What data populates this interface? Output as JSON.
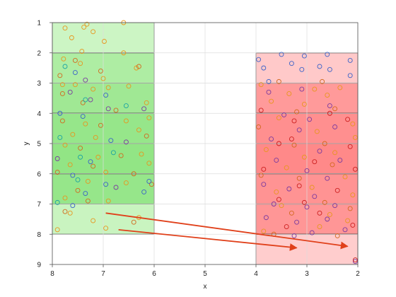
{
  "chart_data": {
    "type": "scatter",
    "title": "",
    "xlabel": "x",
    "ylabel": "y",
    "xlim": [
      8,
      2
    ],
    "ylim": [
      9,
      1
    ],
    "x_reversed": true,
    "y_reversed": true,
    "grid": true,
    "xticks": [
      "8",
      "7",
      "6",
      "5",
      "4",
      "3",
      "2"
    ],
    "yticks": [
      "1",
      "2",
      "3",
      "4",
      "5",
      "6",
      "7",
      "8",
      "9"
    ],
    "regions": [
      {
        "name": "left-block",
        "x_range": [
          8,
          6
        ],
        "bands": [
          {
            "y_range": [
              1,
              2
            ],
            "color": "#ccf5c4"
          },
          {
            "y_range": [
              2,
              3
            ],
            "color": "#aeeda3"
          },
          {
            "y_range": [
              3,
              4
            ],
            "color": "#a0e894"
          },
          {
            "y_range": [
              4,
              5
            ],
            "color": "#96e68a"
          },
          {
            "y_range": [
              5,
              6
            ],
            "color": "#92e585"
          },
          {
            "y_range": [
              6,
              7
            ],
            "color": "#96e68a"
          },
          {
            "y_range": [
              7,
              8
            ],
            "color": "#c9f4c0"
          }
        ]
      },
      {
        "name": "right-block",
        "x_range": [
          4,
          2
        ],
        "bands": [
          {
            "y_range": [
              2,
              3
            ],
            "color": "#ffc9c9"
          },
          {
            "y_range": [
              3,
              4
            ],
            "color": "#ff9a9a"
          },
          {
            "y_range": [
              4,
              5
            ],
            "color": "#ff8f8f"
          },
          {
            "y_range": [
              5,
              6
            ],
            "color": "#ff8989"
          },
          {
            "y_range": [
              6,
              7
            ],
            "color": "#ff9393"
          },
          {
            "y_range": [
              7,
              8
            ],
            "color": "#ff9696"
          },
          {
            "y_range": [
              8,
              9
            ],
            "color": "#ffcdcd"
          }
        ]
      }
    ],
    "point_colors": {
      "blue": "#3a62c9",
      "purple": "#7a3aa0",
      "orange": "#e8961e",
      "dark_orange": "#d2691e",
      "red": "#cc1f1f",
      "teal": "#1aa3a3"
    },
    "series": [
      {
        "color_key": "orange",
        "points": [
          [
            7.75,
            1.18
          ],
          [
            7.38,
            1.15
          ],
          [
            7.32,
            1.05
          ],
          [
            6.6,
            1.0
          ],
          [
            7.62,
            1.5
          ],
          [
            7.2,
            1.3
          ],
          [
            6.98,
            1.62
          ],
          [
            7.42,
            1.95
          ],
          [
            6.6,
            2.0
          ],
          [
            7.78,
            2.2
          ],
          [
            7.45,
            2.35
          ],
          [
            6.35,
            2.5
          ],
          [
            7.0,
            2.85
          ],
          [
            6.9,
            3.15
          ],
          [
            7.55,
            3.05
          ],
          [
            7.2,
            3.2
          ],
          [
            6.5,
            3.1
          ],
          [
            6.15,
            3.65
          ],
          [
            7.8,
            3.05
          ],
          [
            7.35,
            4.35
          ],
          [
            6.55,
            4.25
          ],
          [
            6.1,
            4.15
          ],
          [
            7.6,
            4.7
          ],
          [
            7.15,
            4.8
          ],
          [
            6.3,
            4.55
          ],
          [
            7.75,
            5.05
          ],
          [
            7.1,
            5.45
          ],
          [
            6.25,
            5.35
          ],
          [
            7.65,
            5.7
          ],
          [
            6.95,
            5.95
          ],
          [
            6.1,
            5.65
          ],
          [
            7.3,
            6.25
          ],
          [
            6.55,
            6.3
          ],
          [
            7.75,
            6.8
          ],
          [
            6.9,
            6.9
          ],
          [
            7.65,
            7.3
          ],
          [
            7.2,
            7.55
          ],
          [
            6.95,
            7.8
          ],
          [
            6.3,
            7.45
          ],
          [
            7.9,
            7.85
          ],
          [
            3.9,
            3.05
          ],
          [
            3.35,
            3.35
          ],
          [
            2.85,
            3.2
          ],
          [
            2.35,
            3.15
          ],
          [
            3.7,
            3.6
          ],
          [
            3.05,
            3.7
          ],
          [
            2.6,
            3.4
          ],
          [
            2.05,
            4.8
          ],
          [
            3.55,
            4.15
          ],
          [
            2.8,
            4.6
          ],
          [
            2.1,
            4.35
          ],
          [
            3.8,
            5.2
          ],
          [
            3.05,
            5.45
          ],
          [
            2.45,
            5.3
          ],
          [
            3.4,
            5.8
          ],
          [
            2.25,
            6.1
          ],
          [
            3.6,
            6.6
          ],
          [
            2.9,
            6.45
          ],
          [
            2.1,
            6.7
          ],
          [
            3.5,
            7.05
          ],
          [
            2.55,
            7.35
          ],
          [
            3.85,
            7.9
          ],
          [
            2.75,
            7.75
          ],
          [
            2.2,
            7.55
          ]
        ]
      },
      {
        "color_key": "dark_orange",
        "points": [
          [
            7.85,
            2.75
          ],
          [
            7.55,
            2.25
          ],
          [
            6.3,
            2.45
          ],
          [
            7.05,
            2.6
          ],
          [
            7.8,
            3.35
          ],
          [
            7.4,
            3.65
          ],
          [
            6.75,
            3.9
          ],
          [
            7.8,
            4.25
          ],
          [
            7.05,
            4.4
          ],
          [
            6.15,
            4.75
          ],
          [
            7.45,
            5.15
          ],
          [
            6.65,
            5.4
          ],
          [
            7.9,
            5.95
          ],
          [
            7.2,
            5.75
          ],
          [
            6.4,
            6.0
          ],
          [
            7.5,
            6.55
          ],
          [
            6.05,
            6.35
          ],
          [
            7.3,
            6.9
          ],
          [
            6.4,
            7.6
          ],
          [
            7.75,
            7.25
          ],
          [
            3.55,
            2.95
          ],
          [
            2.7,
            2.95
          ],
          [
            3.2,
            3.95
          ],
          [
            2.45,
            3.85
          ],
          [
            3.95,
            4.45
          ],
          [
            2.65,
            5.0
          ],
          [
            3.25,
            5.05
          ],
          [
            2.5,
            5.7
          ],
          [
            3.9,
            6.05
          ],
          [
            3.15,
            6.15
          ],
          [
            2.65,
            6.95
          ],
          [
            3.3,
            7.3
          ],
          [
            2.15,
            7.15
          ],
          [
            3.65,
            8.0
          ],
          [
            2.4,
            8.05
          ]
        ]
      },
      {
        "color_key": "blue",
        "points": [
          [
            3.95,
            2.22
          ],
          [
            3.85,
            2.5
          ],
          [
            3.5,
            2.05
          ],
          [
            3.05,
            2.1
          ],
          [
            2.6,
            2.05
          ],
          [
            2.75,
            2.45
          ],
          [
            3.3,
            2.35
          ],
          [
            2.15,
            2.25
          ],
          [
            2.55,
            2.55
          ],
          [
            3.1,
            2.55
          ],
          [
            3.75,
            2.95
          ],
          [
            2.15,
            2.75
          ],
          [
            7.55,
            2.65
          ],
          [
            6.95,
            3.4
          ],
          [
            7.4,
            4.1
          ],
          [
            7.85,
            4.0
          ],
          [
            6.85,
            4.9
          ],
          [
            7.25,
            5.6
          ],
          [
            7.6,
            6.05
          ],
          [
            6.1,
            6.25
          ],
          [
            6.95,
            6.35
          ],
          [
            7.35,
            6.65
          ],
          [
            6.2,
            6.6
          ],
          [
            7.6,
            7.05
          ]
        ]
      },
      {
        "color_key": "purple",
        "points": [
          [
            7.35,
            2.9
          ],
          [
            7.65,
            3.3
          ],
          [
            7.25,
            3.55
          ],
          [
            6.9,
            3.85
          ],
          [
            6.2,
            3.85
          ],
          [
            6.55,
            4.95
          ],
          [
            7.9,
            5.5
          ],
          [
            6.75,
            6.45
          ],
          [
            3.75,
            3.3
          ],
          [
            3.1,
            3.2
          ],
          [
            2.55,
            3.75
          ],
          [
            3.45,
            4.05
          ],
          [
            2.95,
            4.2
          ],
          [
            2.45,
            4.45
          ],
          [
            3.7,
            4.85
          ],
          [
            3.15,
            4.55
          ],
          [
            2.75,
            5.25
          ],
          [
            3.6,
            5.55
          ],
          [
            2.35,
            5.55
          ],
          [
            3.0,
            5.9
          ],
          [
            2.6,
            6.15
          ],
          [
            3.85,
            6.35
          ],
          [
            3.35,
            6.5
          ],
          [
            2.85,
            6.75
          ],
          [
            3.65,
            7.0
          ],
          [
            3.0,
            7.1
          ],
          [
            2.45,
            7.05
          ],
          [
            3.8,
            7.45
          ],
          [
            3.2,
            7.6
          ],
          [
            2.6,
            7.5
          ],
          [
            2.25,
            7.85
          ],
          [
            3.25,
            8.05
          ],
          [
            2.9,
            7.95
          ],
          [
            2.05,
            8.9
          ]
        ]
      },
      {
        "color_key": "red",
        "points": [
          [
            3.9,
            3.9
          ],
          [
            3.25,
            4.25
          ],
          [
            2.55,
            4.0
          ],
          [
            2.2,
            4.2
          ],
          [
            3.3,
            4.85
          ],
          [
            2.15,
            5.1
          ],
          [
            3.55,
            5.0
          ],
          [
            2.85,
            5.6
          ],
          [
            3.85,
            5.85
          ],
          [
            2.05,
            5.85
          ],
          [
            3.15,
            6.4
          ],
          [
            2.4,
            6.55
          ],
          [
            3.55,
            6.85
          ],
          [
            3.05,
            6.95
          ],
          [
            2.75,
            7.3
          ],
          [
            3.4,
            7.75
          ],
          [
            2.05,
            8.85
          ],
          [
            2.1,
            7.7
          ]
        ]
      },
      {
        "color_key": "teal",
        "points": [
          [
            7.75,
            2.45
          ],
          [
            7.35,
            3.55
          ],
          [
            6.55,
            3.75
          ],
          [
            7.85,
            4.8
          ],
          [
            7.45,
            5.45
          ],
          [
            6.8,
            5.3
          ],
          [
            7.5,
            6.2
          ],
          [
            7.9,
            6.95
          ]
        ]
      }
    ],
    "arrows": [
      {
        "from": [
          6.95,
          7.3
        ],
        "to": [
          2.2,
          8.4
        ],
        "color": "#e0401a"
      },
      {
        "from": [
          6.7,
          7.85
        ],
        "to": [
          3.2,
          8.45
        ],
        "color": "#e0401a"
      }
    ]
  }
}
